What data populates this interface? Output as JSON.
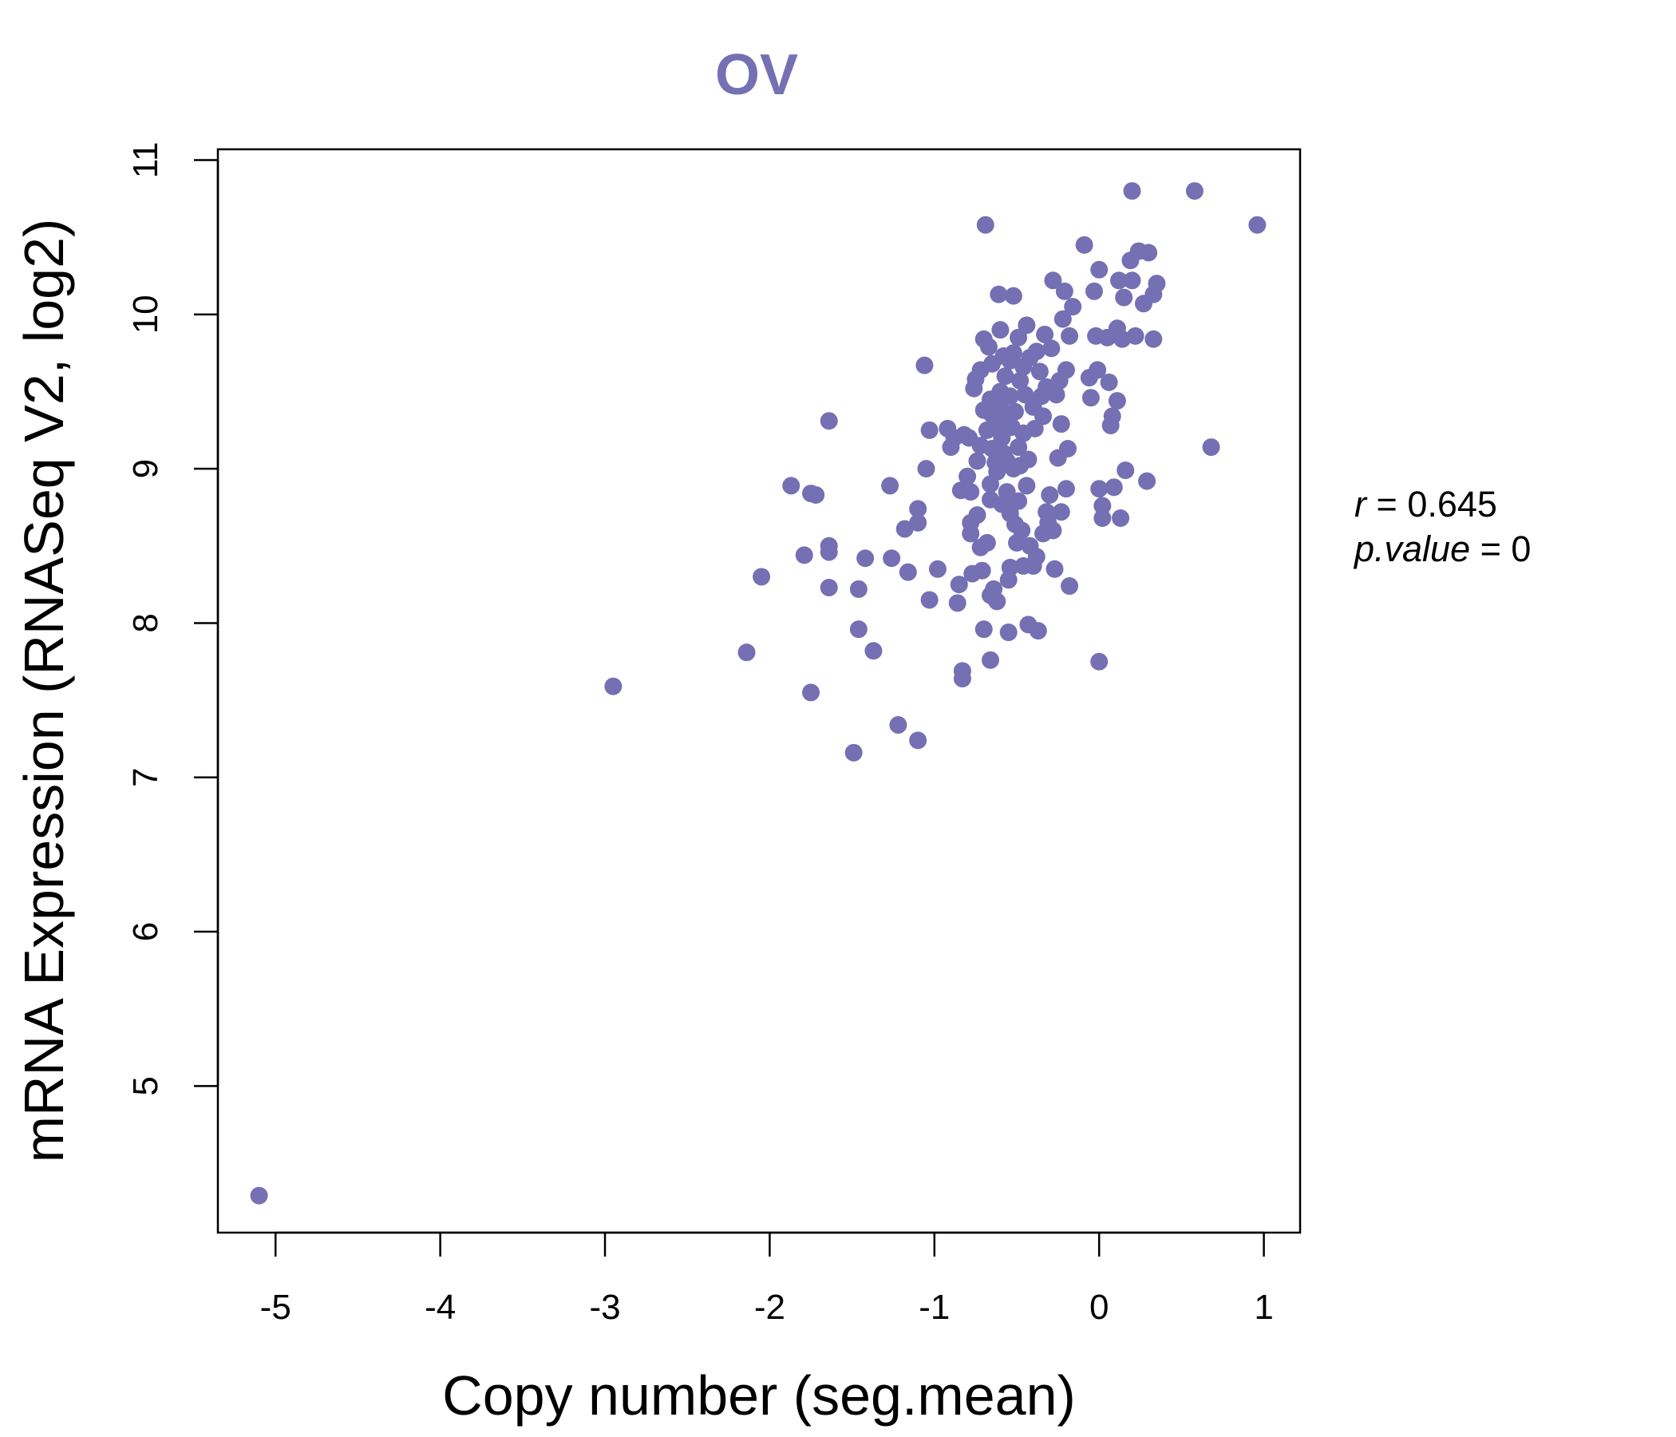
{
  "colors": {
    "accent": "#7570b3",
    "axis": "#000000"
  },
  "chart_data": {
    "type": "scatter",
    "title": "OV",
    "xlabel": "Copy number (seg.mean)",
    "ylabel": "mRNA Expression (RNASeq V2, log2)",
    "xlim": [
      -5.35,
      1.22
    ],
    "ylim": [
      4.05,
      11.07
    ],
    "xticks": [
      -5,
      -4,
      -3,
      -2,
      -1,
      0,
      1
    ],
    "xtick_labels": [
      "-5",
      "-4",
      "-3",
      "-2",
      "-1",
      "0",
      "1"
    ],
    "yticks": [
      5,
      6,
      7,
      8,
      9,
      10,
      11
    ],
    "ytick_labels": [
      "5",
      "6",
      "7",
      "8",
      "9",
      "10",
      "11"
    ],
    "annotation": {
      "r_symbol": "r",
      "r_value": "0.645",
      "p_symbol": "p.value",
      "p_value": "0",
      "equals": "="
    },
    "points": [
      [
        -5.1,
        4.29
      ],
      [
        -2.95,
        7.59
      ],
      [
        -2.14,
        7.81
      ],
      [
        -2.05,
        8.3
      ],
      [
        -1.87,
        8.89
      ],
      [
        -1.79,
        8.44
      ],
      [
        -1.75,
        8.84
      ],
      [
        -1.72,
        8.83
      ],
      [
        -1.75,
        7.55
      ],
      [
        -1.64,
        9.31
      ],
      [
        -1.64,
        8.5
      ],
      [
        -1.64,
        8.46
      ],
      [
        -1.64,
        8.23
      ],
      [
        -1.46,
        8.22
      ],
      [
        -1.46,
        7.96
      ],
      [
        -1.42,
        8.42
      ],
      [
        -1.37,
        7.82
      ],
      [
        -1.27,
        8.89
      ],
      [
        -1.26,
        8.42
      ],
      [
        -1.22,
        7.34
      ],
      [
        -1.18,
        8.61
      ],
      [
        -1.16,
        8.33
      ],
      [
        -1.49,
        7.16
      ],
      [
        -1.1,
        8.74
      ],
      [
        -1.1,
        8.65
      ],
      [
        -1.1,
        7.24
      ],
      [
        -1.06,
        9.67
      ],
      [
        -1.05,
        9.0
      ],
      [
        -1.03,
        9.25
      ],
      [
        -1.03,
        8.15
      ],
      [
        -0.98,
        8.35
      ],
      [
        -0.92,
        9.26
      ],
      [
        -0.9,
        9.14
      ],
      [
        -0.88,
        9.2
      ],
      [
        -0.85,
        8.25
      ],
      [
        -0.86,
        8.13
      ],
      [
        -0.84,
        8.86
      ],
      [
        -0.83,
        7.69
      ],
      [
        -0.83,
        7.64
      ],
      [
        -0.82,
        9.22
      ],
      [
        -0.8,
        8.95
      ],
      [
        -0.79,
        9.2
      ],
      [
        -0.78,
        8.85
      ],
      [
        -0.78,
        8.58
      ],
      [
        -0.78,
        8.65
      ],
      [
        -0.77,
        8.32
      ],
      [
        -0.76,
        9.52
      ],
      [
        -0.75,
        9.58
      ],
      [
        -0.74,
        9.05
      ],
      [
        -0.74,
        8.7
      ],
      [
        -0.72,
        9.64
      ],
      [
        -0.72,
        9.15
      ],
      [
        -0.72,
        8.49
      ],
      [
        -0.71,
        8.34
      ],
      [
        -0.7,
        9.84
      ],
      [
        -0.7,
        9.38
      ],
      [
        -0.7,
        7.96
      ],
      [
        -0.69,
        10.58
      ],
      [
        -0.68,
        9.25
      ],
      [
        -0.68,
        8.52
      ],
      [
        -0.67,
        9.79
      ],
      [
        -0.66,
        9.45
      ],
      [
        -0.66,
        8.9
      ],
      [
        -0.66,
        8.8
      ],
      [
        -0.66,
        8.18
      ],
      [
        -0.66,
        7.76
      ],
      [
        -0.65,
        9.68
      ],
      [
        -0.65,
        9.35
      ],
      [
        -0.65,
        9.13
      ],
      [
        -0.64,
        8.22
      ],
      [
        -0.63,
        9.27
      ],
      [
        -0.63,
        9.04
      ],
      [
        -0.62,
        8.98
      ],
      [
        -0.62,
        8.14
      ],
      [
        -0.61,
        10.13
      ],
      [
        -0.6,
        9.9
      ],
      [
        -0.6,
        9.5
      ],
      [
        -0.6,
        9.42
      ],
      [
        -0.59,
        9.2
      ],
      [
        -0.59,
        8.77
      ],
      [
        -0.58,
        9.73
      ],
      [
        -0.58,
        9.1
      ],
      [
        -0.57,
        9.6
      ],
      [
        -0.57,
        9.33
      ],
      [
        -0.56,
        9.05
      ],
      [
        -0.56,
        8.85
      ],
      [
        -0.55,
        8.28
      ],
      [
        -0.55,
        7.94
      ],
      [
        -0.54,
        9.7
      ],
      [
        -0.54,
        9.47
      ],
      [
        -0.54,
        8.71
      ],
      [
        -0.54,
        8.36
      ],
      [
        -0.53,
        9.27
      ],
      [
        -0.52,
        10.12
      ],
      [
        -0.52,
        9.75
      ],
      [
        -0.52,
        9.0
      ],
      [
        -0.51,
        9.37
      ],
      [
        -0.51,
        8.64
      ],
      [
        -0.5,
        8.52
      ],
      [
        -0.49,
        9.85
      ],
      [
        -0.49,
        9.14
      ],
      [
        -0.49,
        8.79
      ],
      [
        -0.48,
        9.57
      ],
      [
        -0.48,
        9.02
      ],
      [
        -0.47,
        8.6
      ],
      [
        -0.46,
        9.66
      ],
      [
        -0.46,
        9.23
      ],
      [
        -0.46,
        8.37
      ],
      [
        -0.45,
        9.48
      ],
      [
        -0.44,
        9.93
      ],
      [
        -0.44,
        8.89
      ],
      [
        -0.43,
        9.06
      ],
      [
        -0.43,
        7.99
      ],
      [
        -0.42,
        9.72
      ],
      [
        -0.42,
        8.5
      ],
      [
        -0.4,
        9.4
      ],
      [
        -0.4,
        8.37
      ],
      [
        -0.39,
        9.26
      ],
      [
        -0.38,
        9.76
      ],
      [
        -0.38,
        8.43
      ],
      [
        -0.37,
        7.95
      ],
      [
        -0.36,
        9.63
      ],
      [
        -0.35,
        9.47
      ],
      [
        -0.34,
        9.34
      ],
      [
        -0.34,
        8.58
      ],
      [
        -0.33,
        9.87
      ],
      [
        -0.32,
        9.53
      ],
      [
        -0.32,
        8.72
      ],
      [
        -0.31,
        8.65
      ],
      [
        -0.3,
        8.83
      ],
      [
        -0.29,
        9.78
      ],
      [
        -0.28,
        10.22
      ],
      [
        -0.28,
        8.6
      ],
      [
        -0.27,
        8.35
      ],
      [
        -0.26,
        9.48
      ],
      [
        -0.25,
        9.07
      ],
      [
        -0.24,
        9.57
      ],
      [
        -0.23,
        9.29
      ],
      [
        -0.23,
        8.72
      ],
      [
        -0.22,
        9.97
      ],
      [
        -0.21,
        10.15
      ],
      [
        -0.2,
        9.64
      ],
      [
        -0.2,
        8.87
      ],
      [
        -0.19,
        9.13
      ],
      [
        -0.18,
        9.86
      ],
      [
        -0.18,
        8.24
      ],
      [
        -0.16,
        10.05
      ],
      [
        -0.09,
        10.45
      ],
      [
        -0.06,
        9.59
      ],
      [
        -0.05,
        9.46
      ],
      [
        -0.03,
        10.15
      ],
      [
        -0.02,
        9.86
      ],
      [
        -0.01,
        9.64
      ],
      [
        0.0,
        10.29
      ],
      [
        0.0,
        8.87
      ],
      [
        0.0,
        7.75
      ],
      [
        0.02,
        8.76
      ],
      [
        0.02,
        8.68
      ],
      [
        0.05,
        9.85
      ],
      [
        0.06,
        9.56
      ],
      [
        0.07,
        9.28
      ],
      [
        0.08,
        9.34
      ],
      [
        0.09,
        8.88
      ],
      [
        0.11,
        9.91
      ],
      [
        0.11,
        9.44
      ],
      [
        0.12,
        10.22
      ],
      [
        0.13,
        8.68
      ],
      [
        0.14,
        9.84
      ],
      [
        0.15,
        10.11
      ],
      [
        0.16,
        8.99
      ],
      [
        0.19,
        10.35
      ],
      [
        0.2,
        10.8
      ],
      [
        0.2,
        10.22
      ],
      [
        0.22,
        9.86
      ],
      [
        0.24,
        10.41
      ],
      [
        0.27,
        10.07
      ],
      [
        0.29,
        8.92
      ],
      [
        0.3,
        10.4
      ],
      [
        0.33,
        10.13
      ],
      [
        0.33,
        9.84
      ],
      [
        0.35,
        10.2
      ],
      [
        0.58,
        10.8
      ],
      [
        0.68,
        9.14
      ],
      [
        0.96,
        10.58
      ]
    ]
  }
}
